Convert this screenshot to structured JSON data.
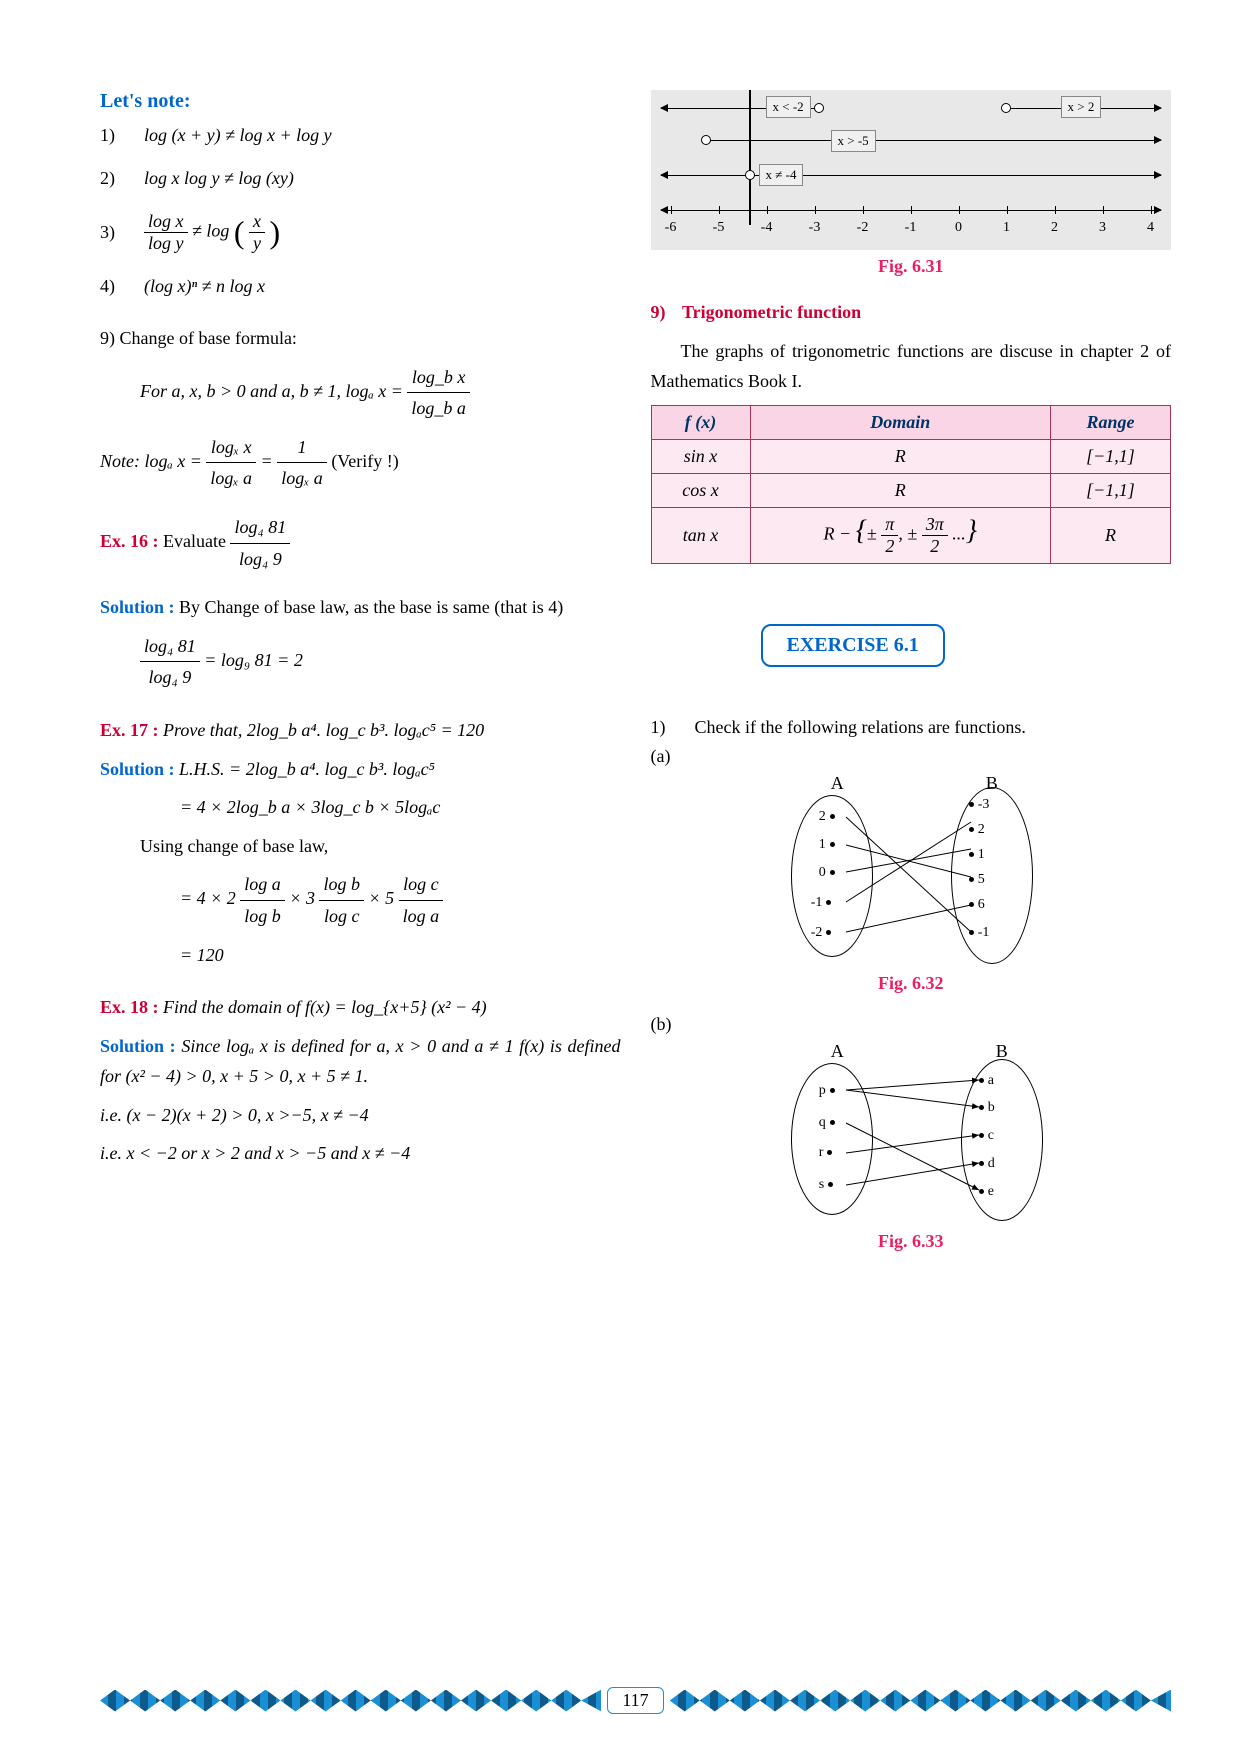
{
  "lets_note": "Let's  note:",
  "notes": {
    "n1": "log (x + y) ≠ log x  +  log y",
    "n2": "log x log y ≠ log (xy)",
    "n3a": "log  x",
    "n3b": "log  y",
    "n3c": " ≠ log ",
    "n3d": "x",
    "n3e": "y",
    "n4": "(log x)ⁿ ≠ n log x"
  },
  "change_base_head": "9) Change of base formula:",
  "change_base_line": "For a, x, b > 0 and a, b ≠ 1, logₐ x = ",
  "cb_frac_num": "log_b  x",
  "cb_frac_den": "log_b  a",
  "note_label": "Note: logₐ x = ",
  "note_f1n": "logₓ  x",
  "note_f1d": "logₓ  a",
  "note_eq": " = ",
  "note_f2n": "1",
  "note_f2d": "logₓ  a",
  "note_verify": "  (Verify !)",
  "ex16_label": "Ex. 16 :",
  "ex16_body": " Evaluate ",
  "ex16_fn": "log₄  81",
  "ex16_fd": "log₄  9",
  "sol_label": "Solution :",
  "ex16_sol1": " By Change of base law, as the base is same (that is 4)",
  "ex16_sol_fn": "log₄  81",
  "ex16_sol_fd": "log₄  9",
  "ex16_sol_eq": " = log₉ 81 = 2",
  "ex17_label": "Ex. 17 :",
  "ex17_body": " Prove that, 2log_b a⁴. log_c b³. logₐc⁵ = 120",
  "ex17_sol1": " L.H.S. = 2log_b a⁴. log_c b³. logₐc⁵",
  "ex17_sol2": "= 4 × 2log_b a × 3log_c b × 5logₐc",
  "ex17_sol3": "Using change of base law,",
  "ex17_sol4_pre": "= 4 × 2 ",
  "ex17_f1n": "log a",
  "ex17_f1d": "log b",
  "ex17_mid1": " × 3 ",
  "ex17_f2n": "log b",
  "ex17_f2d": "log c",
  "ex17_mid2": " × 5 ",
  "ex17_f3n": "log c",
  "ex17_f3d": "log a",
  "ex17_sol5": "= 120",
  "ex18_label": "Ex. 18 :",
  "ex18_body": " Find the domain of f(x) = log_{x+5} (x² − 4)",
  "ex18_sol1": " Since logₐ x is defined for a, x > 0 and a ≠ 1 f(x) is defined for (x² − 4) > 0, x + 5 > 0, x + 5 ≠ 1.",
  "ex18_sol2": "i.e. (x − 2)(x + 2) > 0, x >−5, x ≠ −4",
  "ex18_sol3": "i.e. x < −2 or x > 2 and x > −5 and x ≠ −4",
  "numline": {
    "labels": {
      "lt": "x < -2",
      "gt2": "x > 2",
      "gt5": "x > -5",
      "neq": "x ≠ -4"
    },
    "ticks": [
      "-6",
      "-5",
      "-4",
      "-3",
      "-2",
      "-1",
      "0",
      "1",
      "2",
      "3",
      "4"
    ]
  },
  "fig631": "Fig. 6.31",
  "trig_head": "Trigonometric function",
  "trig_para": "The graphs of trigonometric functions are discuse in chapter 2 of Mathematics Book I.",
  "table": {
    "h1": "f (x)",
    "h2": "Domain",
    "h3": "Range",
    "rows": [
      [
        "sin x",
        "R",
        "[−1,1]"
      ],
      [
        "cos x",
        "R",
        "[−1,1]"
      ],
      [
        "tan x",
        "R − {± π/2, ± 3π/2 ...}",
        "R"
      ]
    ]
  },
  "exercise": "EXERCISE 6.1",
  "q1": "Check if the following relations are functions.",
  "q1_num": "1)",
  "q1a": "(a)",
  "q1b": "(b)",
  "fig632": "Fig. 6.32",
  "fig633": "Fig. 6.33",
  "diag_a": {
    "A": "A",
    "B": "B",
    "left": [
      "2",
      "1",
      "0",
      "-1",
      "-2"
    ],
    "right": [
      "-3",
      "2",
      "1",
      "5",
      "6",
      "-1"
    ]
  },
  "diag_b": {
    "A": "A",
    "B": "B",
    "left": [
      "p",
      "q",
      "r",
      "s"
    ],
    "right": [
      "a",
      "b",
      "c",
      "d",
      "e"
    ]
  },
  "pagenum": "117",
  "nine": "9)"
}
